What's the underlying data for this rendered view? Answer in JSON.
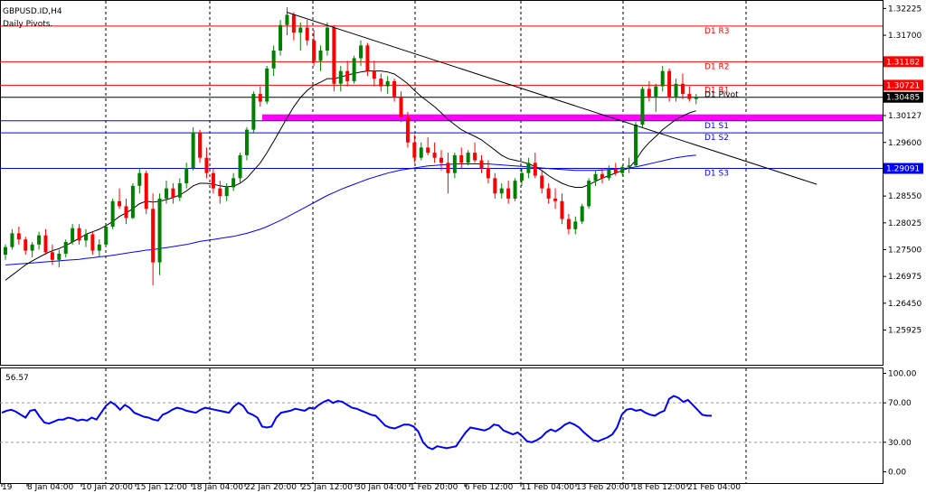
{
  "chart_data": {
    "type": "candlestick",
    "symbol_title": "GBPUSD.ID,H4",
    "indicator_title": "Daily Pivots.",
    "price_axis": {
      "range": [
        1.2535,
        1.3232
      ],
      "ticks": [
        "1.32225",
        "1.31700",
        "1.31182",
        "1.30721",
        "1.30485",
        "1.30127",
        "1.29600",
        "1.29091",
        "1.28550",
        "1.28025",
        "1.27500",
        "1.26975",
        "1.26450",
        "1.25925"
      ]
    },
    "pivot_levels": [
      {
        "name": "D1 R3",
        "value": 1.31879,
        "label": "1.31879",
        "color": "#ff0000"
      },
      {
        "name": "D1 R2",
        "value": 1.31182,
        "label": "1.31182",
        "color": "#ff0000"
      },
      {
        "name": "D1 R1",
        "value": 1.30721,
        "label": "1.30721",
        "color": "#ff0000"
      },
      {
        "name": "D1 Pivot",
        "value": 1.30485,
        "label": "1.30485",
        "color": "#000000"
      },
      {
        "name": "D1 S1",
        "value": 1.30024,
        "label": "1.30024",
        "color": "#0000ff"
      },
      {
        "name": "D1 S2",
        "value": 1.29788,
        "label": "1.29788",
        "color": "#0000ff"
      },
      {
        "name": "D1 S3",
        "value": 1.29091,
        "label": "1.29091",
        "color": "#0000ff"
      }
    ],
    "supply_zone": [
      1.3003,
      1.3015
    ],
    "trendline": {
      "from": [
        42,
        1.3215
      ],
      "to": [
        121,
        1.2878
      ]
    },
    "x_range": [
      0,
      130
    ],
    "candles": [
      [
        1.274,
        1.276,
        1.273,
        1.2755
      ],
      [
        1.2755,
        1.279,
        1.275,
        1.2782
      ],
      [
        1.2782,
        1.2795,
        1.276,
        1.277
      ],
      [
        1.277,
        1.2775,
        1.274,
        1.2748
      ],
      [
        1.2748,
        1.2765,
        1.2735,
        1.276
      ],
      [
        1.276,
        1.2785,
        1.275,
        1.2778
      ],
      [
        1.2778,
        1.279,
        1.274,
        1.2745
      ],
      [
        1.2745,
        1.276,
        1.272,
        1.273
      ],
      [
        1.273,
        1.275,
        1.2715,
        1.2742
      ],
      [
        1.2742,
        1.277,
        1.2735,
        1.2765
      ],
      [
        1.2765,
        1.28,
        1.276,
        1.2792
      ],
      [
        1.2792,
        1.28,
        1.276,
        1.2768
      ],
      [
        1.2768,
        1.279,
        1.2755,
        1.278
      ],
      [
        1.278,
        1.2785,
        1.274,
        1.2748
      ],
      [
        1.2748,
        1.277,
        1.2735,
        1.276
      ],
      [
        1.276,
        1.28,
        1.2755,
        1.2795
      ],
      [
        1.2795,
        1.285,
        1.279,
        1.2845
      ],
      [
        1.2845,
        1.287,
        1.283,
        1.2835
      ],
      [
        1.2835,
        1.285,
        1.28,
        1.2812
      ],
      [
        1.2812,
        1.288,
        1.281,
        1.2875
      ],
      [
        1.2875,
        1.291,
        1.286,
        1.29
      ],
      [
        1.29,
        1.2905,
        1.282,
        1.283
      ],
      [
        1.283,
        1.286,
        1.268,
        1.2725
      ],
      [
        1.2725,
        1.286,
        1.27,
        1.285
      ],
      [
        1.285,
        1.2885,
        1.284,
        1.287
      ],
      [
        1.287,
        1.288,
        1.284,
        1.2852
      ],
      [
        1.2852,
        1.289,
        1.2845,
        1.288
      ],
      [
        1.288,
        1.292,
        1.287,
        1.291
      ],
      [
        1.291,
        1.299,
        1.2905,
        1.298
      ],
      [
        1.298,
        1.2985,
        1.292,
        1.293
      ],
      [
        1.293,
        1.295,
        1.289,
        1.29
      ],
      [
        1.29,
        1.291,
        1.286,
        1.287
      ],
      [
        1.287,
        1.2885,
        1.284,
        1.2855
      ],
      [
        1.2855,
        1.288,
        1.2845,
        1.2872
      ],
      [
        1.2872,
        1.29,
        1.2865,
        1.289
      ],
      [
        1.289,
        1.294,
        1.288,
        1.2935
      ],
      [
        1.2935,
        1.299,
        1.2925,
        1.2985
      ],
      [
        1.2985,
        1.306,
        1.298,
        1.3055
      ],
      [
        1.3055,
        1.307,
        1.303,
        1.304
      ],
      [
        1.304,
        1.311,
        1.3035,
        1.3105
      ],
      [
        1.3105,
        1.315,
        1.309,
        1.314
      ],
      [
        1.314,
        1.32,
        1.313,
        1.319
      ],
      [
        1.319,
        1.3225,
        1.317,
        1.321
      ],
      [
        1.321,
        1.3215,
        1.316,
        1.3175
      ],
      [
        1.3175,
        1.3195,
        1.314,
        1.3185
      ],
      [
        1.3185,
        1.32,
        1.315,
        1.316
      ],
      [
        1.316,
        1.318,
        1.311,
        1.312
      ],
      [
        1.312,
        1.315,
        1.31,
        1.314
      ],
      [
        1.314,
        1.3195,
        1.313,
        1.3185
      ],
      [
        1.3185,
        1.319,
        1.306,
        1.3075
      ],
      [
        1.3075,
        1.311,
        1.306,
        1.31
      ],
      [
        1.31,
        1.312,
        1.307,
        1.308
      ],
      [
        1.308,
        1.313,
        1.3075,
        1.3125
      ],
      [
        1.3125,
        1.316,
        1.311,
        1.315
      ],
      [
        1.315,
        1.3155,
        1.309,
        1.31
      ],
      [
        1.31,
        1.312,
        1.307,
        1.3085
      ],
      [
        1.3085,
        1.3095,
        1.306,
        1.307
      ],
      [
        1.307,
        1.309,
        1.3055,
        1.308
      ],
      [
        1.308,
        1.3085,
        1.304,
        1.305
      ],
      [
        1.305,
        1.306,
        1.3,
        1.301
      ],
      [
        1.301,
        1.302,
        1.295,
        1.296
      ],
      [
        1.296,
        1.2975,
        1.292,
        1.293
      ],
      [
        1.293,
        1.296,
        1.2925,
        1.295
      ],
      [
        1.295,
        1.297,
        1.2935,
        1.294
      ],
      [
        1.294,
        1.296,
        1.292,
        1.293
      ],
      [
        1.293,
        1.2945,
        1.2905,
        1.292
      ],
      [
        1.292,
        1.294,
        1.286,
        1.29
      ],
      [
        1.29,
        1.294,
        1.289,
        1.2935
      ],
      [
        1.2935,
        1.295,
        1.291,
        1.292
      ],
      [
        1.292,
        1.2945,
        1.2915,
        1.294
      ],
      [
        1.294,
        1.296,
        1.292,
        1.2925
      ],
      [
        1.2925,
        1.2935,
        1.29,
        1.291
      ],
      [
        1.291,
        1.2925,
        1.288,
        1.289
      ],
      [
        1.289,
        1.29,
        1.285,
        1.286
      ],
      [
        1.286,
        1.288,
        1.285,
        1.287
      ],
      [
        1.287,
        1.2885,
        1.284,
        1.285
      ],
      [
        1.285,
        1.289,
        1.2845,
        1.2885
      ],
      [
        1.2885,
        1.291,
        1.2875,
        1.29
      ],
      [
        1.29,
        1.293,
        1.289,
        1.292
      ],
      [
        1.292,
        1.294,
        1.289,
        1.2895
      ],
      [
        1.2895,
        1.2905,
        1.286,
        1.287
      ],
      [
        1.287,
        1.288,
        1.284,
        1.285
      ],
      [
        1.285,
        1.287,
        1.283,
        1.2845
      ],
      [
        1.2845,
        1.286,
        1.28,
        1.281
      ],
      [
        1.281,
        1.282,
        1.278,
        1.279
      ],
      [
        1.279,
        1.2815,
        1.278,
        1.2805
      ],
      [
        1.2805,
        1.284,
        1.28,
        1.2835
      ],
      [
        1.2835,
        1.289,
        1.283,
        1.2885
      ],
      [
        1.2885,
        1.2905,
        1.2875,
        1.2898
      ],
      [
        1.2898,
        1.291,
        1.288,
        1.289
      ],
      [
        1.289,
        1.2915,
        1.2885,
        1.2908
      ],
      [
        1.2908,
        1.292,
        1.2895,
        1.29
      ],
      [
        1.29,
        1.2915,
        1.2895,
        1.2912
      ],
      [
        1.2912,
        1.293,
        1.29,
        1.2915
      ],
      [
        1.2915,
        1.3,
        1.2912,
        1.2995
      ],
      [
        1.2995,
        1.307,
        1.299,
        1.3065
      ],
      [
        1.3065,
        1.308,
        1.304,
        1.305
      ],
      [
        1.305,
        1.3075,
        1.302,
        1.307
      ],
      [
        1.307,
        1.311,
        1.306,
        1.31
      ],
      [
        1.31,
        1.3105,
        1.304,
        1.305
      ],
      [
        1.305,
        1.3085,
        1.304,
        1.3075
      ],
      [
        1.3075,
        1.3095,
        1.3045,
        1.3055
      ],
      [
        1.3055,
        1.307,
        1.304,
        1.3045
      ],
      [
        1.3045,
        1.3055,
        1.3035,
        1.3048
      ]
    ],
    "ma_fast": [
      1.269,
      1.27,
      1.271,
      1.272,
      1.2728,
      1.2735,
      1.2742,
      1.2748,
      1.2752,
      1.2758,
      1.2765,
      1.2772,
      1.278,
      1.2785,
      1.279,
      1.2797,
      1.2805,
      1.2815,
      1.2822,
      1.283,
      1.284,
      1.2845,
      1.2843,
      1.2845,
      1.2848,
      1.2852,
      1.2857,
      1.2865,
      1.2875,
      1.288,
      1.288,
      1.2878,
      1.2875,
      1.2873,
      1.2874,
      1.288,
      1.289,
      1.2905,
      1.292,
      1.294,
      1.2962,
      1.2985,
      1.3008,
      1.303,
      1.3048,
      1.3062,
      1.3072,
      1.3078,
      1.3085,
      1.3085,
      1.3088,
      1.3092,
      1.3095,
      1.3098,
      1.31,
      1.31,
      1.31,
      1.3098,
      1.3094,
      1.3085,
      1.3075,
      1.3062,
      1.305,
      1.304,
      1.303,
      1.3018,
      1.3005,
      1.2995,
      1.2985,
      1.2978,
      1.2972,
      1.2965,
      1.2955,
      1.2945,
      1.2935,
      1.2928,
      1.2925,
      1.2922,
      1.2918,
      1.2913,
      1.2905,
      1.2895,
      1.2887,
      1.288,
      1.2875,
      1.2872,
      1.2872,
      1.2877,
      1.2884,
      1.289,
      1.2895,
      1.29,
      1.2905,
      1.291,
      1.2925,
      1.2945,
      1.296,
      1.2972,
      1.2985,
      1.2995,
      1.3005,
      1.3012,
      1.3018,
      1.3022
    ],
    "ma_slow": [
      1.272,
      1.2721,
      1.2722,
      1.2723,
      1.2724,
      1.2725,
      1.2726,
      1.2727,
      1.2728,
      1.2729,
      1.273,
      1.2731,
      1.2733,
      1.2734,
      1.2736,
      1.2737,
      1.2739,
      1.2741,
      1.2743,
      1.2745,
      1.2747,
      1.2749,
      1.275,
      1.2752,
      1.2754,
      1.2756,
      1.2758,
      1.276,
      1.2763,
      1.2766,
      1.2768,
      1.277,
      1.2772,
      1.2774,
      1.2776,
      1.2779,
      1.2782,
      1.2786,
      1.279,
      1.2795,
      1.2801,
      1.2807,
      1.2814,
      1.2821,
      1.2828,
      1.2835,
      1.2842,
      1.2849,
      1.2856,
      1.2862,
      1.2868,
      1.2873,
      1.2878,
      1.2883,
      1.2888,
      1.2892,
      1.2896,
      1.29,
      1.2903,
      1.2906,
      1.2908,
      1.291,
      1.2912,
      1.2914,
      1.2915,
      1.2916,
      1.2917,
      1.2918,
      1.2918,
      1.2918,
      1.2918,
      1.2918,
      1.2918,
      1.2917,
      1.2916,
      1.2915,
      1.2914,
      1.2913,
      1.2912,
      1.2911,
      1.291,
      1.2909,
      1.2908,
      1.2907,
      1.2906,
      1.2905,
      1.2905,
      1.2905,
      1.2905,
      1.2906,
      1.2907,
      1.2908,
      1.2909,
      1.291,
      1.2912,
      1.2915,
      1.2918,
      1.2921,
      1.2924,
      1.2927,
      1.293,
      1.2932,
      1.2934,
      1.2935
    ],
    "oscillator": {
      "value_label": "56.57",
      "range": [
        -5,
        105
      ],
      "ticks": [
        "100.00",
        "70.00",
        "30.00",
        "0.00"
      ],
      "values": [
        60,
        62,
        63,
        61,
        58,
        55,
        62,
        63,
        56,
        50,
        49,
        51,
        53,
        53,
        55,
        54,
        52,
        53,
        52,
        55,
        53,
        60,
        67,
        71,
        68,
        63,
        68,
        65,
        60,
        58,
        56,
        55,
        53,
        52,
        58,
        60,
        63,
        65,
        64,
        62,
        61,
        60,
        63,
        65,
        64,
        63,
        62,
        61,
        60,
        66,
        70,
        67,
        60,
        58,
        55,
        46,
        45,
        46,
        55,
        60,
        61,
        62,
        64,
        63,
        62,
        65,
        64,
        68,
        71,
        73,
        70,
        72,
        71,
        68,
        65,
        64,
        62,
        60,
        58,
        57,
        52,
        47,
        45,
        44,
        46,
        48,
        48,
        46,
        41,
        30,
        25,
        23,
        26,
        25,
        24,
        25,
        26,
        33,
        40,
        45,
        44,
        43,
        42,
        44,
        48,
        47,
        42,
        40,
        38,
        40,
        36,
        31,
        30,
        32,
        35,
        40,
        43,
        41,
        44,
        48,
        50,
        48,
        45,
        40,
        36,
        32,
        31,
        33,
        35,
        38,
        45,
        58,
        63,
        64,
        62,
        63,
        60,
        58,
        57,
        60,
        62,
        74,
        77,
        75,
        71,
        73,
        68,
        63,
        58,
        57,
        57
      ]
    },
    "x_labels": [
      "19",
      "8 Jan 04:00",
      "10 Jan 20:00",
      "15 Jan 12:00",
      "18 Jan 04:00",
      "22 Jan 20:00",
      "25 Jan 12:00",
      "30 Jan 04:00",
      "1 Feb 20:00",
      "6 Feb 12:00",
      "11 Feb 04:00",
      "13 Feb 20:00",
      "18 Feb 12:00",
      "21 Feb 04:00"
    ],
    "bull_color": "#008000",
    "bear_color": "#ff0000",
    "zone_color": "#ff00ff",
    "ma_fast_color": "#000000",
    "ma_slow_color": "#0000ff",
    "osc_color": "#0000ff"
  }
}
